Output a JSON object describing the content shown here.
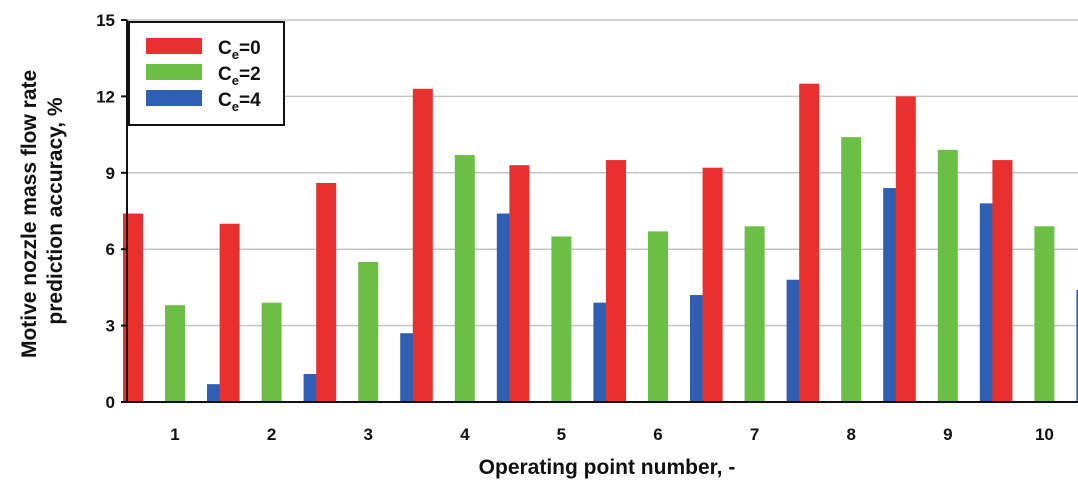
{
  "chart_data": {
    "type": "bar",
    "xlabel": "Operating point number, -",
    "ylabel_lines": [
      "Motive nozzle mass flow rate",
      "prediction accuracy, %"
    ],
    "categories": [
      "1",
      "2",
      "3",
      "4",
      "5",
      "6",
      "7",
      "8",
      "9",
      "10"
    ],
    "ylim": [
      0,
      15
    ],
    "yticks": [
      "0",
      "3",
      "6",
      "9",
      "12",
      "15"
    ],
    "grid": "horizontal",
    "legend_position": "top-left",
    "series": [
      {
        "name_main": "C",
        "name_sub": "e",
        "name_suffix": "=0",
        "color": "#e8312f",
        "values": [
          7.4,
          7.0,
          8.6,
          12.3,
          9.3,
          9.5,
          9.2,
          12.5,
          12.0,
          9.5
        ]
      },
      {
        "name_main": "C",
        "name_sub": "e",
        "name_suffix": "=2",
        "color": "#6cbf45",
        "values": [
          3.8,
          3.9,
          5.5,
          9.7,
          6.5,
          6.7,
          6.9,
          10.4,
          9.9,
          6.9
        ]
      },
      {
        "name_main": "C",
        "name_sub": "e",
        "name_suffix": "=4",
        "color": "#2f5fb3",
        "values": [
          0.7,
          1.1,
          2.7,
          7.4,
          3.9,
          4.2,
          4.8,
          8.4,
          7.8,
          4.4
        ]
      }
    ]
  }
}
